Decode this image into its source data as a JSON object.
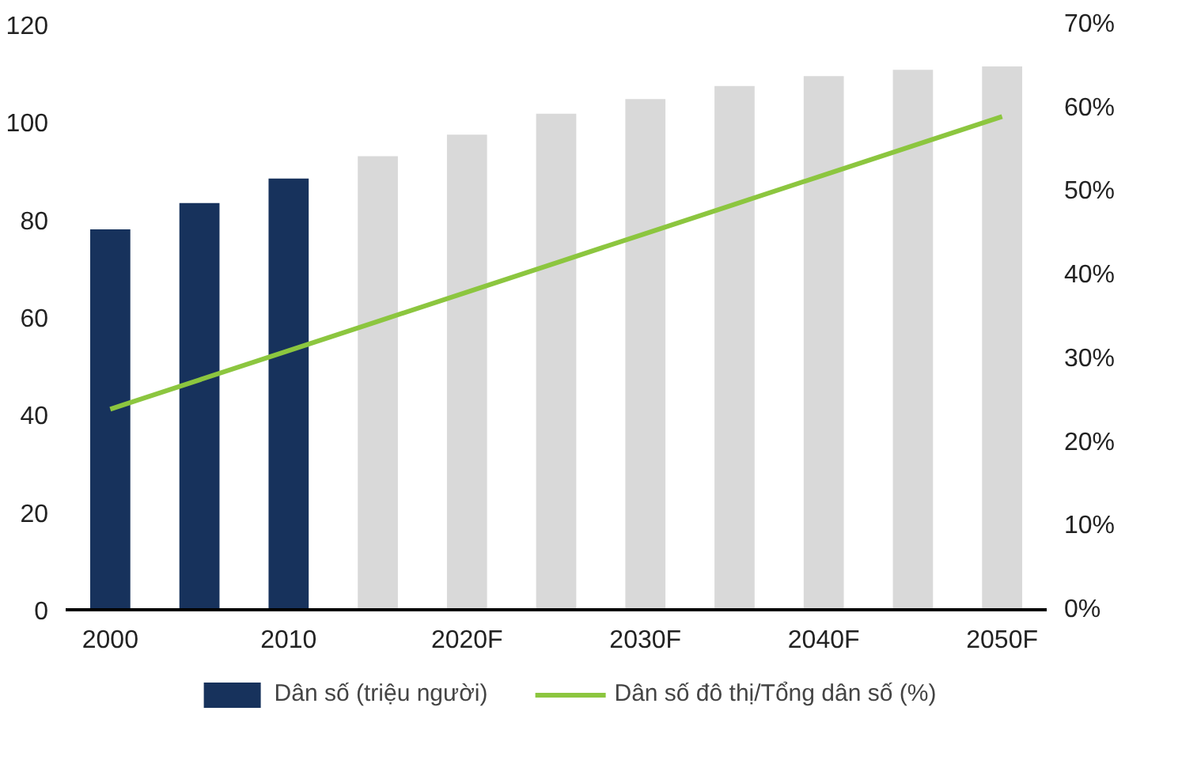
{
  "chart_data": {
    "type": "bar",
    "categories": [
      "2000",
      null,
      "2010",
      null,
      "2020F",
      null,
      "2030F",
      null,
      "2040F",
      null,
      "2050F"
    ],
    "series": [
      {
        "name": "Dân số (triệu người)",
        "colors": [
          "#17325c",
          "#17325c",
          "#17325c",
          "#d9d9d9",
          "#d9d9d9",
          "#d9d9d9",
          "#d9d9d9",
          "#d9d9d9",
          "#d9d9d9",
          "#d9d9d9",
          "#d9d9d9"
        ],
        "values": [
          78,
          83.4,
          88.4,
          93,
          97.4,
          101.7,
          104.7,
          107.4,
          109.4,
          110.7,
          111.4
        ]
      },
      {
        "name": "Dân số đô thị/Tổng dân số (%)",
        "type": "line",
        "axis": "y2",
        "color": "#8cc63f",
        "values": [
          24,
          27.5,
          31,
          34.5,
          38,
          41.5,
          45,
          48.5,
          52,
          55.5,
          59
        ]
      }
    ],
    "ylim": [
      0,
      120
    ],
    "yticks": [
      0,
      20,
      40,
      60,
      80,
      100,
      120
    ],
    "y2lim": [
      0,
      70
    ],
    "y2ticks": [
      {
        "value": 0,
        "label": "0%"
      },
      {
        "value": 10,
        "label": "10%"
      },
      {
        "value": 20,
        "label": "20%"
      },
      {
        "value": 30,
        "label": "30%"
      },
      {
        "value": 40,
        "label": "40%"
      },
      {
        "value": 50,
        "label": "50%"
      },
      {
        "value": 60,
        "label": "60%"
      },
      {
        "value": 70,
        "label": "70%"
      }
    ],
    "grid": false,
    "legend": "bottom",
    "marker": "none",
    "line_style": "solid"
  }
}
